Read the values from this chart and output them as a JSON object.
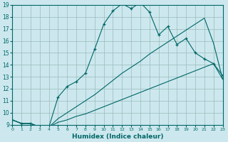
{
  "xlabel": "Humidex (Indice chaleur)",
  "bg_color": "#cce8ee",
  "grid_color": "#99bbbb",
  "line_color": "#006666",
  "xlim": [
    0,
    23
  ],
  "ylim": [
    9,
    19
  ],
  "xticks": [
    0,
    1,
    2,
    3,
    4,
    5,
    6,
    7,
    8,
    9,
    10,
    11,
    12,
    13,
    14,
    15,
    16,
    17,
    18,
    19,
    20,
    21,
    22,
    23
  ],
  "yticks": [
    9,
    10,
    11,
    12,
    13,
    14,
    15,
    16,
    17,
    18,
    19
  ],
  "curve1_x": [
    0,
    1,
    2,
    3,
    4,
    5,
    6,
    7,
    8,
    9,
    10,
    11,
    12,
    13,
    14,
    15,
    16,
    17,
    18,
    19,
    20,
    21,
    22,
    23
  ],
  "curve1_y": [
    9.4,
    9.1,
    9.1,
    8.8,
    8.8,
    11.3,
    12.2,
    12.6,
    13.3,
    15.3,
    17.4,
    18.5,
    19.1,
    18.7,
    19.2,
    18.4,
    16.5,
    17.2,
    15.7,
    16.2,
    15.0,
    14.5,
    14.1,
    13.1
  ],
  "curve2_x": [
    0,
    1,
    2,
    3,
    4,
    5,
    6,
    7,
    8,
    9,
    10,
    11,
    12,
    13,
    14,
    15,
    16,
    17,
    18,
    19,
    20,
    21,
    22,
    23
  ],
  "curve2_y": [
    9.4,
    9.1,
    9.1,
    8.8,
    8.8,
    9.2,
    9.4,
    9.7,
    9.9,
    10.2,
    10.5,
    10.8,
    11.1,
    11.4,
    11.7,
    12.0,
    12.3,
    12.6,
    12.9,
    13.2,
    13.5,
    13.8,
    14.1,
    12.8
  ],
  "curve3_x": [
    0,
    1,
    2,
    3,
    4,
    5,
    6,
    7,
    8,
    9,
    10,
    11,
    12,
    13,
    14,
    15,
    16,
    17,
    18,
    19,
    20,
    21,
    22,
    23
  ],
  "curve3_y": [
    9.4,
    9.1,
    9.1,
    8.8,
    8.8,
    9.5,
    10.0,
    10.5,
    11.0,
    11.5,
    12.1,
    12.7,
    13.3,
    13.8,
    14.3,
    14.9,
    15.4,
    15.9,
    16.4,
    16.9,
    17.4,
    17.9,
    15.8,
    12.8
  ]
}
